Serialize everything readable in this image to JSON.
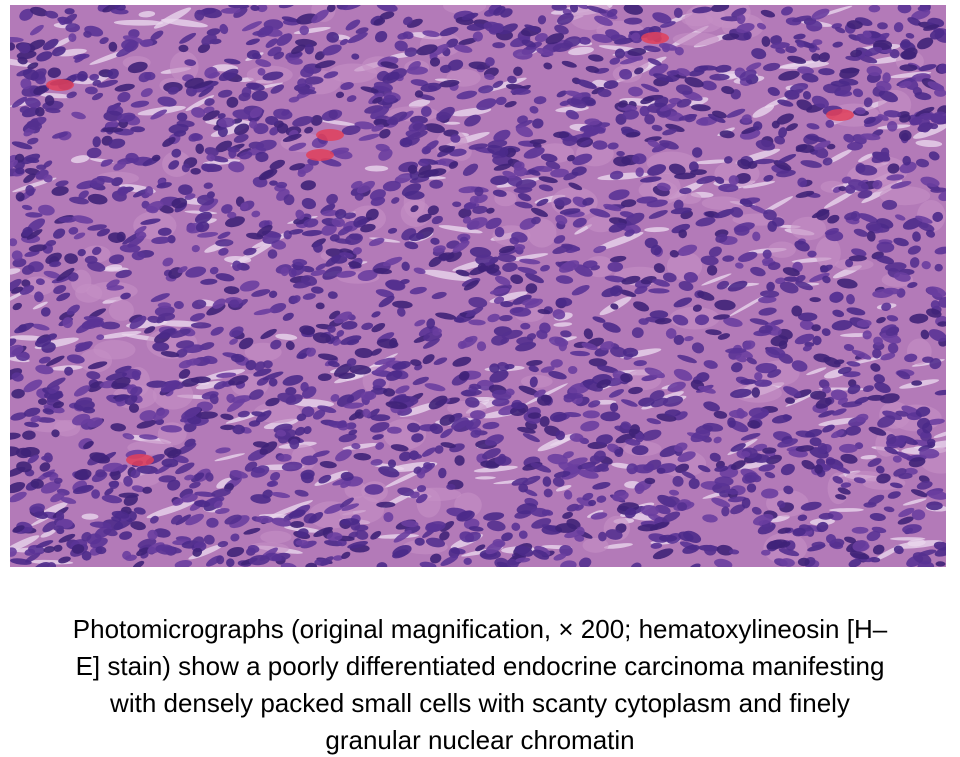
{
  "figure": {
    "caption_lines": [
      "Photomicrographs (original magnification, × 200; hematoxylineosin [H–",
      "E] stain) show a poorly differentiated endocrine carcinoma manifesting",
      "with densely packed small cells with scanty cytoplasm and finely",
      "granular nuclear chromatin"
    ]
  }
}
